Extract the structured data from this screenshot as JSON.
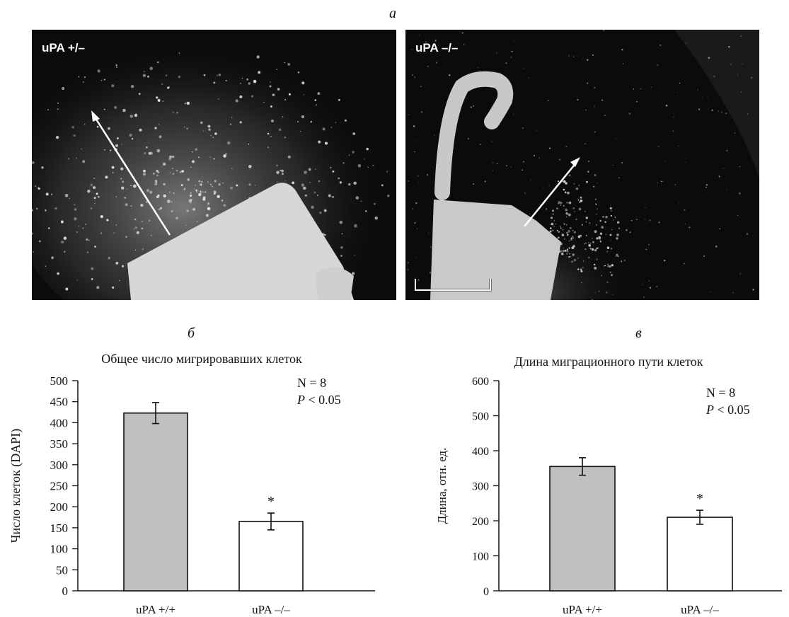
{
  "figure": {
    "panel_a_letter": "a",
    "panel_b_letter": "б",
    "panel_c_letter": "в",
    "photos": [
      {
        "label": "uPA +/–"
      },
      {
        "label": "uPA –/–"
      }
    ]
  },
  "colors": {
    "bar_wt": "#c0c0c0",
    "bar_ko": "#ffffff",
    "outline": "#111111",
    "photo_bg": "#0b0b0b"
  },
  "chart_data": [
    {
      "type": "bar",
      "title": "Общее число мигрировавших клеток",
      "xlabel": "",
      "ylabel": "Число клеток (DAPI)",
      "categories": [
        "uPA +/+",
        "uPA –/–"
      ],
      "values": [
        423,
        165
      ],
      "errors": [
        25,
        20
      ],
      "significance": [
        "",
        "*"
      ],
      "ylim": [
        0,
        500
      ],
      "yticks": [
        0,
        50,
        100,
        150,
        200,
        250,
        300,
        350,
        400,
        450,
        500
      ],
      "stats": {
        "n": "N = 8",
        "p_italic": "P",
        "p_rest": " < 0.05"
      },
      "grid": false
    },
    {
      "type": "bar",
      "title": "Длина миграционного пути клеток",
      "xlabel": "",
      "ylabel": "Длина, отн. ед.",
      "categories": [
        "uPA +/+",
        "uPA –/–"
      ],
      "values": [
        355,
        210
      ],
      "errors": [
        25,
        20
      ],
      "significance": [
        "",
        "*"
      ],
      "ylim": [
        0,
        600
      ],
      "yticks": [
        0,
        100,
        200,
        300,
        400,
        500,
        600
      ],
      "stats": {
        "n": "N = 8",
        "p_italic": "P",
        "p_rest": " < 0.05"
      },
      "grid": false
    }
  ]
}
